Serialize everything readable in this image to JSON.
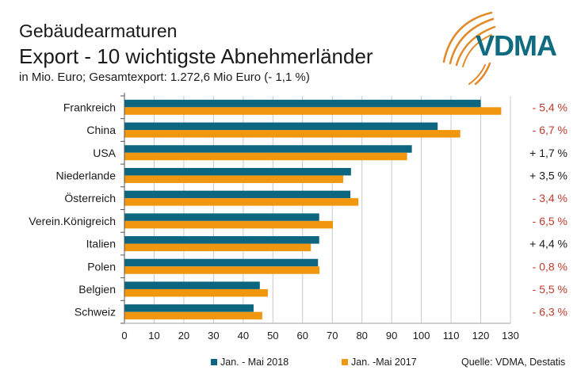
{
  "header": {
    "title_line1": "Gebäudearmaturen",
    "title_line2": "Export - 10 wichtigste Abnehmerländer",
    "subtitle": "in Mio. Euro; Gesamtexport: 1.272,6 Mio Euro (- 1,1 %)"
  },
  "logo": {
    "text": "VDMA",
    "text_color": "#0e6b80",
    "arc_color": "#e08a2a"
  },
  "source": "Quelle: VDMA, Destatis",
  "colors": {
    "series_2018": "#0d6680",
    "series_2017": "#f0960f",
    "negative": "#c0392b",
    "positive": "#1a1a1a",
    "grid": "#c8c8c8"
  },
  "chart_data": {
    "type": "bar",
    "orientation": "horizontal",
    "title": "Export - 10 wichtigste Abnehmerländer",
    "xlabel": "",
    "ylabel": "",
    "xlim": [
      0,
      130
    ],
    "xticks": [
      0,
      10,
      20,
      30,
      40,
      50,
      60,
      70,
      80,
      90,
      100,
      110,
      120,
      130
    ],
    "grid": true,
    "legend_position": "bottom",
    "categories": [
      "Frankreich",
      "China",
      "USA",
      "Niederlande",
      "Österreich",
      "Verein.Königreich",
      "Italien",
      "Polen",
      "Belgien",
      "Schweiz"
    ],
    "series": [
      {
        "name": "Jan. - Mai 2018",
        "values": [
          120.0,
          105.5,
          96.8,
          76.3,
          76.1,
          65.6,
          65.6,
          65.2,
          45.6,
          43.5
        ]
      },
      {
        "name": "Jan. -Mai 2017",
        "values": [
          126.9,
          113.1,
          95.2,
          73.7,
          78.8,
          70.2,
          62.8,
          65.7,
          48.3,
          46.4
        ]
      }
    ],
    "annotations": [
      "- 5,4 %",
      "- 6,7 %",
      "+ 1,7 %",
      "+ 3,5 %",
      "- 3,4 %",
      "- 6,5 %",
      "+ 4,4 %",
      "- 0,8 %",
      "- 5,5 %",
      "- 6,3 %"
    ]
  }
}
